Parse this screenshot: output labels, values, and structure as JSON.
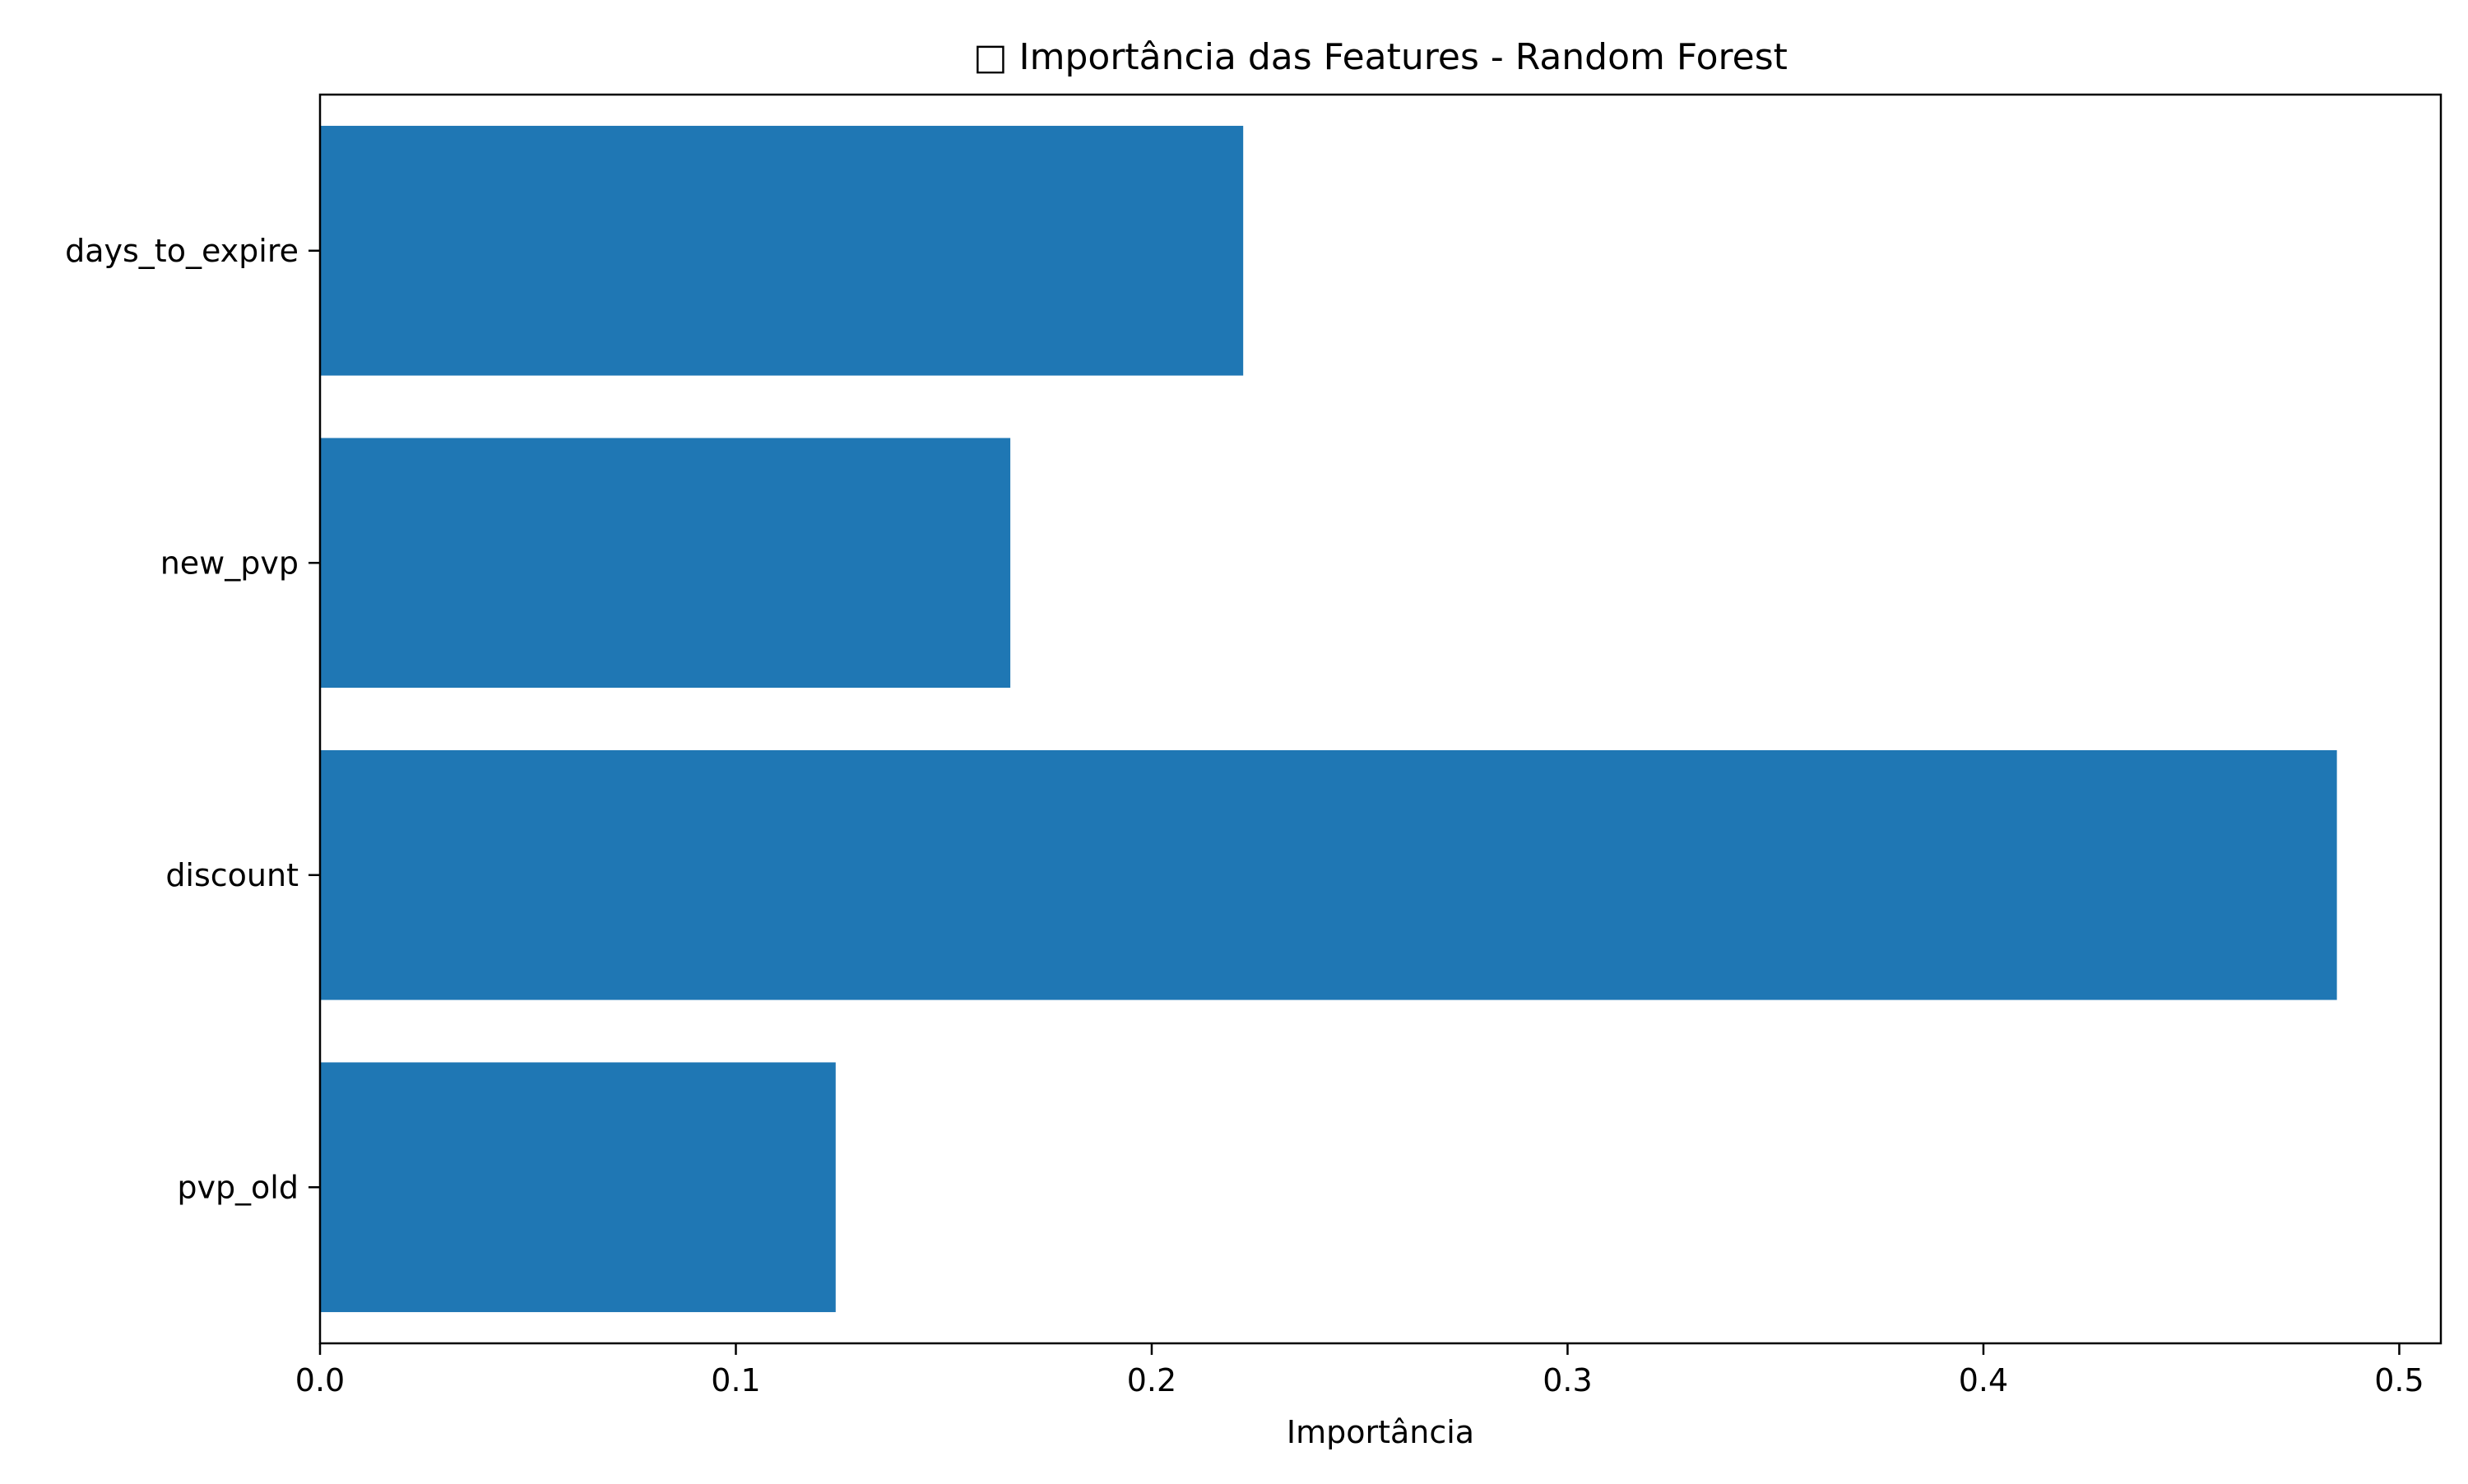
{
  "chart_data": {
    "type": "bar",
    "orientation": "horizontal",
    "title": "□ Importância das Features - Random Forest",
    "xlabel": "Importância",
    "ylabel": "",
    "categories": [
      "days_to_expire",
      "new_pvp",
      "discount",
      "pvp_old"
    ],
    "values": [
      0.222,
      0.166,
      0.485,
      0.124
    ],
    "xlim": [
      0.0,
      0.51
    ],
    "xticks": [
      0.0,
      0.1,
      0.2,
      0.3,
      0.4,
      0.5
    ],
    "xtick_labels": [
      "0.0",
      "0.1",
      "0.2",
      "0.3",
      "0.4",
      "0.5"
    ],
    "grid": false,
    "legend": "none",
    "bar_color": "#1f77b4"
  }
}
